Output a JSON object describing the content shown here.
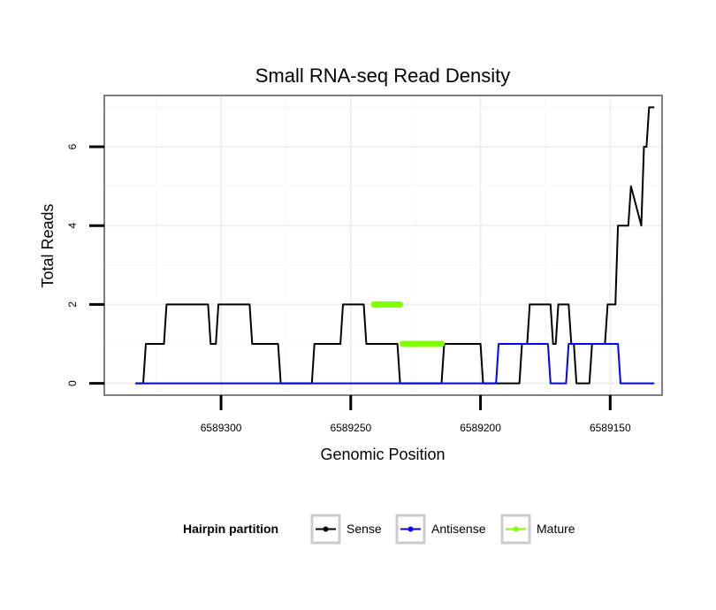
{
  "chart_data": {
    "type": "line",
    "title": "Small RNA-seq Read Density",
    "xlabel": "Genomic Position",
    "ylabel": "Total Reads",
    "xlim": [
      6589345,
      6589130
    ],
    "ylim": [
      -0.3,
      7.3
    ],
    "x_ticks": [
      6589300,
      6589250,
      6589200,
      6589150
    ],
    "x_tick_labels": [
      "6589300",
      "6589250",
      "6589200",
      "6589150"
    ],
    "y_ticks": [
      0,
      2,
      4,
      6
    ],
    "y_tick_labels": [
      "0",
      "2",
      "4",
      "6"
    ],
    "grid": true,
    "legend": {
      "title": "Hairpin partition",
      "position": "bottom",
      "entries": [
        "Sense",
        "Antisense",
        "Mature"
      ]
    },
    "series": [
      {
        "name": "Sense",
        "color": "#000000",
        "x": [
          6589333,
          6589330,
          6589329,
          6589322,
          6589321,
          6589305,
          6589304,
          6589302,
          6589301,
          6589289,
          6589288,
          6589278,
          6589277,
          6589265,
          6589264,
          6589254,
          6589253,
          6589245,
          6589244,
          6589232,
          6589231,
          6589215,
          6589214,
          6589200,
          6589199,
          6589185,
          6589184,
          6589182,
          6589181,
          6589173,
          6589172,
          6589171,
          6589170,
          6589166,
          6589165,
          6589164,
          6589163,
          6589158,
          6589157,
          6589152,
          6589151,
          6589148,
          6589147,
          6589143,
          6589142,
          6589138,
          6589137,
          6589136,
          6589135,
          6589133
        ],
        "y": [
          0,
          0,
          1,
          1,
          2,
          2,
          1,
          1,
          2,
          2,
          1,
          1,
          0,
          0,
          1,
          1,
          2,
          2,
          1,
          1,
          0,
          0,
          1,
          1,
          0,
          0,
          1,
          1,
          2,
          2,
          1,
          1,
          2,
          2,
          1,
          1,
          0,
          0,
          1,
          1,
          2,
          2,
          4,
          4,
          5,
          4,
          6,
          6,
          7,
          7
        ]
      },
      {
        "name": "Antisense",
        "color": "#0000ff",
        "x": [
          6589333,
          6589194,
          6589193,
          6589174,
          6589173,
          6589167,
          6589166,
          6589147,
          6589146,
          6589133
        ],
        "y": [
          0,
          0,
          1,
          1,
          0,
          0,
          1,
          1,
          0,
          0
        ]
      },
      {
        "name": "Mature",
        "color": "#7fff00",
        "segments": [
          {
            "x": [
              6589241,
              6589231
            ],
            "y": [
              2,
              2
            ]
          },
          {
            "x": [
              6589230,
              6589215
            ],
            "y": [
              1,
              1
            ]
          }
        ]
      }
    ]
  }
}
